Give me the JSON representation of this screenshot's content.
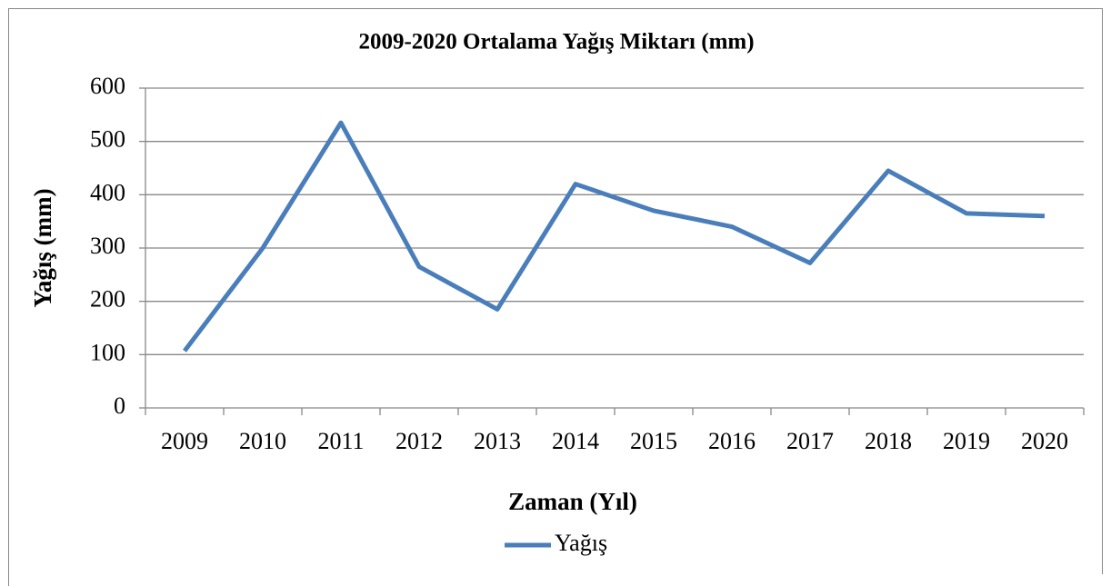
{
  "chart_data": {
    "type": "line",
    "title": "2009-2020 Ortalama Yağış Miktarı (mm)",
    "x_label": "Zaman (Yıl)",
    "y_label": "Yağış (mm)",
    "categories": [
      "2009",
      "2010",
      "2011",
      "2012",
      "2013",
      "2014",
      "2015",
      "2016",
      "2017",
      "2018",
      "2019",
      "2020"
    ],
    "series": [
      {
        "name": "Yağış",
        "color": "#4a7ebb",
        "values": [
          107,
          300,
          535,
          265,
          185,
          420,
          370,
          340,
          272,
          445,
          365,
          360
        ]
      }
    ],
    "ylim": [
      0,
      600
    ],
    "yticks": [
      0,
      100,
      200,
      300,
      400,
      500,
      600
    ],
    "grid": true,
    "legend": "bottom"
  }
}
